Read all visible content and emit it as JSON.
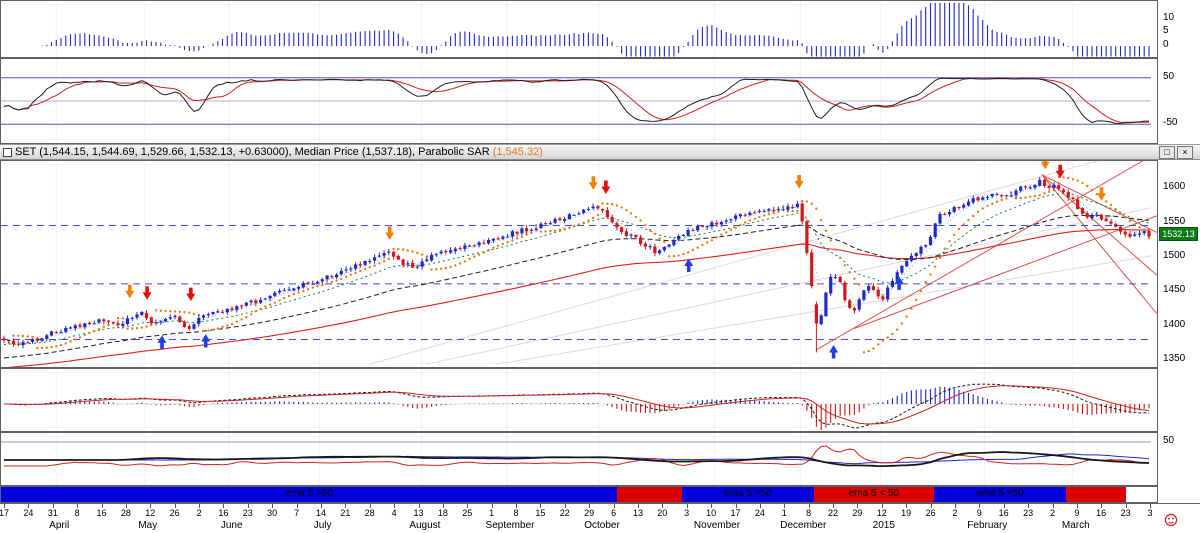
{
  "window": {
    "maximize_glyph": "□",
    "close_glyph": "×"
  },
  "title_bar": {
    "instrument_text": "SET (1,544.15, 1,544.69, 1,529.66, 1,532.13, +0.63000), Median Price (1,537.18), Parabolic SAR ",
    "sar_text": "(1,545.32)",
    "sar_color": "#e87818"
  },
  "chart_data": {
    "type": "candlestick",
    "instrument": "SET",
    "quote": {
      "open": "1,544.15",
      "high": "1,544.69",
      "low": "1,529.66",
      "close": "1,532.13",
      "change": "+0.63000",
      "median_price": "1,537.18",
      "parabolic_sar": "1,545.32"
    },
    "x_range": {
      "start": "April 2014",
      "end": "March 2015"
    },
    "panels": {
      "momentum_histogram": {
        "type": "bar",
        "y_ticks": [
          10,
          5,
          0
        ],
        "bar_color": "#2028c0",
        "period": 8,
        "smooth": 5,
        "scale": 0.25,
        "clamp": [
          -3.8,
          15.8
        ]
      },
      "oscillator": {
        "type": "line",
        "y_ticks": [
          50,
          -50
        ],
        "levels": [
          50,
          0,
          -50
        ],
        "level_color": "#5050d0",
        "mid_color": "#b0b0d8",
        "fast_color": "#202020",
        "slow_color": "#d02020"
      },
      "price": {
        "type": "candlestick",
        "y_ticks": [
          1600,
          1550,
          1500,
          1450,
          1400,
          1350
        ],
        "y_min": 1340,
        "y_max": 1640,
        "last_price": "1532.13",
        "last_price_value": 1532.13,
        "last_price_box_color": "#0a7a14",
        "candle_up_color": "#2028c8",
        "candle_down_color": "#d01818",
        "anchors": {
          "t": [
            0,
            0.008,
            0.02,
            0.04,
            0.055,
            0.07,
            0.085,
            0.1,
            0.11,
            0.12,
            0.128,
            0.138,
            0.148,
            0.16,
            0.17,
            0.185,
            0.21,
            0.24,
            0.27,
            0.3,
            0.325,
            0.338,
            0.348,
            0.358,
            0.375,
            0.4,
            0.43,
            0.46,
            0.48,
            0.495,
            0.505,
            0.515,
            0.522,
            0.53,
            0.54,
            0.55,
            0.56,
            0.568,
            0.578,
            0.59,
            0.6,
            0.615,
            0.635,
            0.655,
            0.668,
            0.68,
            0.69,
            0.694,
            0.7,
            0.705,
            0.709,
            0.712,
            0.718,
            0.724,
            0.73,
            0.737,
            0.741,
            0.748,
            0.755,
            0.762,
            0.768,
            0.771,
            0.78,
            0.788,
            0.8,
            0.806,
            0.815,
            0.83,
            0.845,
            0.862,
            0.875,
            0.885,
            0.895,
            0.905,
            0.912,
            0.918,
            0.925,
            0.932,
            0.94,
            0.948,
            0.955,
            0.962,
            0.97,
            0.978,
            0.985,
            0.992,
            1
          ],
          "p": [
            1382,
            1372,
            1376,
            1388,
            1396,
            1402,
            1407,
            1400,
            1412,
            1420,
            1400,
            1407,
            1414,
            1396,
            1410,
            1418,
            1430,
            1448,
            1463,
            1483,
            1500,
            1507,
            1490,
            1487,
            1502,
            1515,
            1528,
            1542,
            1552,
            1560,
            1570,
            1575,
            1568,
            1550,
            1538,
            1528,
            1518,
            1508,
            1518,
            1532,
            1540,
            1548,
            1556,
            1565,
            1572,
            1568,
            1576,
            1580,
            1520,
            1462,
            1408,
            1398,
            1448,
            1478,
            1462,
            1428,
            1420,
            1442,
            1458,
            1445,
            1438,
            1452,
            1478,
            1495,
            1512,
            1515,
            1558,
            1572,
            1582,
            1592,
            1588,
            1598,
            1602,
            1610,
            1598,
            1605,
            1592,
            1585,
            1568,
            1555,
            1562,
            1552,
            1545,
            1535,
            1528,
            1538,
            1532
          ]
        },
        "overlays": {
          "ma_long_color": "#e02020",
          "ma_mid_color": "#202020",
          "ma_short_color": "#108040",
          "median_color": "#58c8e8",
          "sar_color": "#f07818",
          "levels_color": "#4848e8"
        },
        "levels": [
          1546,
          1461,
          1380
        ],
        "trendlines": [
          {
            "t1": 0.32,
            "p1": 1344,
            "t2": 1.0,
            "p2": 1662,
            "color": "#dcdcdc"
          },
          {
            "t1": 0.37,
            "p1": 1344,
            "t2": 1.0,
            "p2": 1572,
            "color": "#dcdcdc"
          },
          {
            "t1": 0.43,
            "p1": 1344,
            "t2": 1.0,
            "p2": 1502,
            "color": "#dcdcdc"
          },
          {
            "t1": 0.905,
            "p1": 1620,
            "t2": 1.005,
            "p2": 1536,
            "color": "#e05050"
          },
          {
            "t1": 0.905,
            "p1": 1620,
            "t2": 1.005,
            "p2": 1474,
            "color": "#e05050"
          },
          {
            "t1": 0.905,
            "p1": 1620,
            "t2": 1.005,
            "p2": 1418,
            "color": "#e05050"
          },
          {
            "t1": 0.709,
            "p1": 1365,
            "t2": 1.005,
            "p2": 1652,
            "color": "#e05050"
          },
          {
            "t1": 0.742,
            "p1": 1396,
            "t2": 1.005,
            "p2": 1560,
            "color": "#e05050"
          }
        ],
        "signals": [
          {
            "t": 0.112,
            "price": 1440,
            "dir": "down",
            "color": "#f08000"
          },
          {
            "t": 0.127,
            "price": 1438,
            "dir": "down",
            "color": "#e01010"
          },
          {
            "t": 0.14,
            "price": 1386,
            "dir": "up",
            "color": "#2040e0"
          },
          {
            "t": 0.165,
            "price": 1436,
            "dir": "down",
            "color": "#e01010"
          },
          {
            "t": 0.178,
            "price": 1388,
            "dir": "up",
            "color": "#2040e0"
          },
          {
            "t": 0.338,
            "price": 1525,
            "dir": "down",
            "color": "#f08000"
          },
          {
            "t": 0.515,
            "price": 1598,
            "dir": "down",
            "color": "#f08000"
          },
          {
            "t": 0.526,
            "price": 1592,
            "dir": "down",
            "color": "#e01010"
          },
          {
            "t": 0.598,
            "price": 1498,
            "dir": "up",
            "color": "#2040e0"
          },
          {
            "t": 0.694,
            "price": 1600,
            "dir": "down",
            "color": "#f08000"
          },
          {
            "t": 0.724,
            "price": 1372,
            "dir": "up",
            "color": "#2040e0"
          },
          {
            "t": 0.781,
            "price": 1472,
            "dir": "up",
            "color": "#2040e0"
          },
          {
            "t": 0.908,
            "price": 1628,
            "dir": "down",
            "color": "#f08000"
          },
          {
            "t": 0.921,
            "price": 1615,
            "dir": "down",
            "color": "#e01010"
          },
          {
            "t": 0.957,
            "price": 1582,
            "dir": "down",
            "color": "#f08000"
          }
        ]
      },
      "macd": {
        "type": "bar+line",
        "bar_pos_color": "#2028c0",
        "bar_neg_color": "#c01818",
        "macd_color": "#202020",
        "signal_color": "#d02020"
      },
      "roc": {
        "type": "line",
        "y_ticks": [
          50
        ],
        "level_color": "#9090d0",
        "main_color": "#181818",
        "fast_color": "#d02020",
        "slow_color": "#2028c0"
      },
      "ema_status": {
        "segments": [
          {
            "from": 0,
            "to": 0.536,
            "color": "#0000dd",
            "label": "ema 5 >50"
          },
          {
            "from": 0.536,
            "to": 0.592,
            "color": "#dd0000",
            "label": ""
          },
          {
            "from": 0.592,
            "to": 0.707,
            "color": "#0000dd",
            "label": "ema 5 >50"
          },
          {
            "from": 0.707,
            "to": 0.811,
            "color": "#dd0000",
            "label": "ema 5 < 50"
          },
          {
            "from": 0.811,
            "to": 0.926,
            "color": "#0000dd",
            "label": "ema 5 >50"
          },
          {
            "from": 0.926,
            "to": 0.978,
            "color": "#dd0000",
            "label": ""
          },
          {
            "from": 0.978,
            "to": 1.0,
            "color": "#ffffff",
            "label": ""
          }
        ]
      }
    },
    "x_axis": {
      "day_labels": [
        "17",
        "24",
        "31",
        "8",
        "16",
        "28",
        "12",
        "26",
        "2",
        "16",
        "23",
        "30",
        "7",
        "14",
        "21",
        "28",
        "4",
        "13",
        "18",
        "25",
        "1",
        "8",
        "15",
        "22",
        "29",
        "6",
        "13",
        "20",
        "3",
        "10",
        "17",
        "24",
        "1",
        "8",
        "22",
        "29",
        "12",
        "19",
        "26",
        "2",
        "9",
        "16",
        "23",
        "2",
        "9",
        "16",
        "23",
        "3"
      ],
      "months": [
        {
          "label": "April",
          "t": 0.048
        },
        {
          "label": "May",
          "t": 0.125
        },
        {
          "label": "June",
          "t": 0.198
        },
        {
          "label": "July",
          "t": 0.277
        },
        {
          "label": "August",
          "t": 0.366
        },
        {
          "label": "September",
          "t": 0.44
        },
        {
          "label": "October",
          "t": 0.52
        },
        {
          "label": "November",
          "t": 0.62
        },
        {
          "label": "December",
          "t": 0.695
        },
        {
          "label": "2015",
          "t": 0.765
        },
        {
          "label": "February",
          "t": 0.855
        },
        {
          "label": "March",
          "t": 0.932
        }
      ]
    }
  }
}
